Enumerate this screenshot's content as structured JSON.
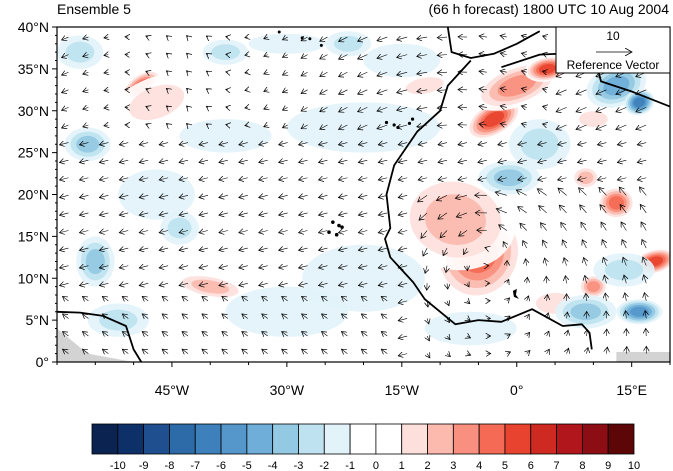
{
  "header": {
    "left": "Ensemble 5",
    "right": "(66 h forecast) 1800 UTC 10 Aug 2004"
  },
  "map": {
    "lon_range": [
      -60,
      20
    ],
    "lat_range": [
      0,
      40
    ],
    "lat_ticks": [
      "0°",
      "5°N",
      "10°N",
      "15°N",
      "20°N",
      "25°N",
      "30°N",
      "35°N",
      "40°N"
    ],
    "lon_ticks": [
      "45°W",
      "30°W",
      "15°W",
      "0°",
      "15°E"
    ],
    "field": "shaded anomaly with wind vectors",
    "land_mask_color": "#d3d3d3",
    "coastline_color": "#000000"
  },
  "reference_vector": {
    "value": "10",
    "label": "Reference Vector"
  },
  "colorbar": {
    "labels": [
      "-10",
      "-9",
      "-8",
      "-7",
      "-6",
      "-5",
      "-4",
      "-3",
      "-2",
      "-1",
      "0",
      "1",
      "2",
      "3",
      "4",
      "5",
      "6",
      "7",
      "8",
      "9",
      "10"
    ],
    "colors": [
      "#0b2350",
      "#0c3067",
      "#1f4f8f",
      "#2c6aa8",
      "#3d80bb",
      "#5597cb",
      "#6eaed8",
      "#94c9e3",
      "#bee2f0",
      "#e2f3fa",
      "#ffffff",
      "#ffffff",
      "#fde0dc",
      "#fbbaad",
      "#f9907f",
      "#f46a55",
      "#e8432f",
      "#cf2a22",
      "#b1161c",
      "#8c0d13",
      "#5d0608"
    ]
  }
}
